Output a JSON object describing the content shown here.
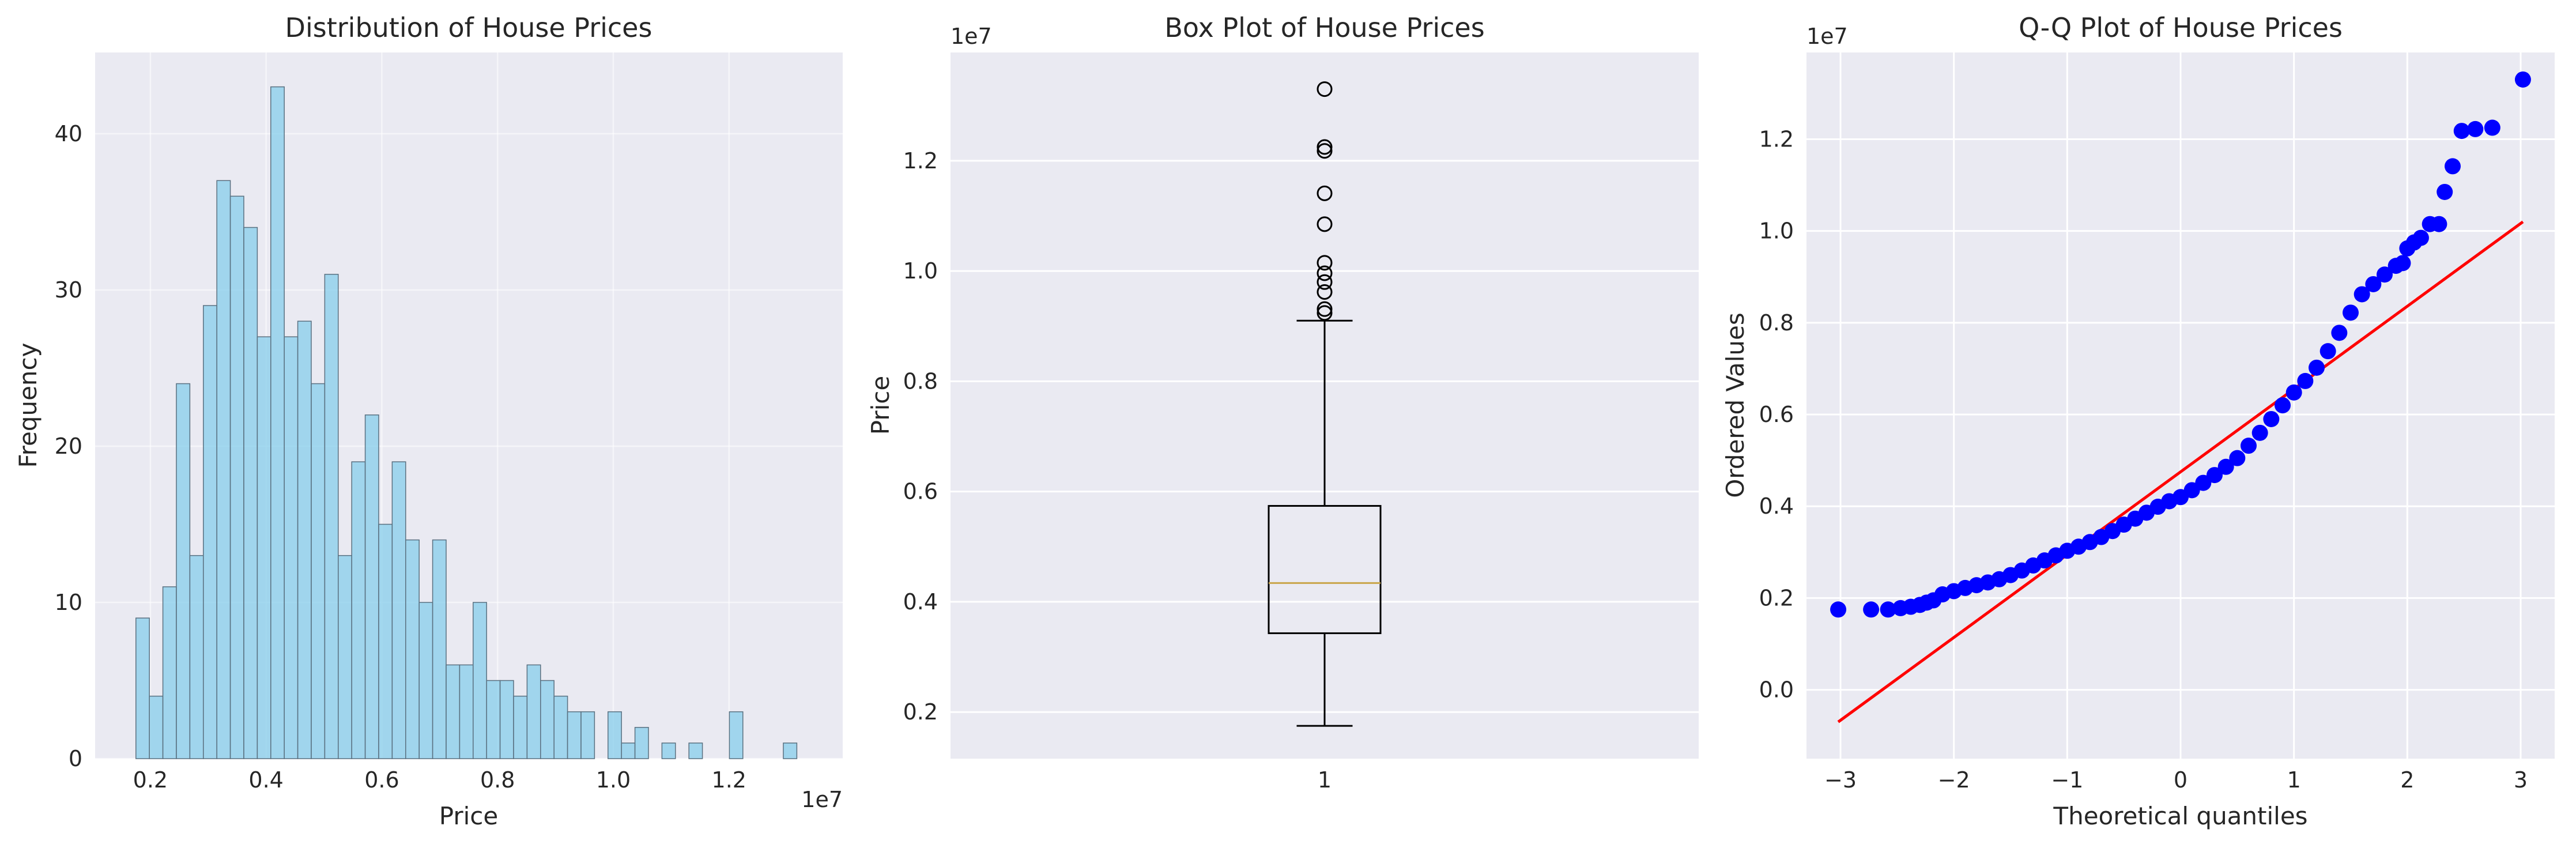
{
  "chart_data": [
    {
      "type": "bar",
      "subtype": "histogram",
      "title": "Distribution of House Prices",
      "xlabel": "Price",
      "ylabel": "Frequency",
      "x_offset_label": "1e7",
      "xlim": [
        0.1045,
        1.3965
      ],
      "ylim": [
        0,
        45.2
      ],
      "xticks": [
        0.2,
        0.4,
        0.6,
        0.8,
        1.0,
        1.2
      ],
      "xtick_labels": [
        "0.2",
        "0.4",
        "0.6",
        "0.8",
        "1.0",
        "1.2"
      ],
      "yticks": [
        0,
        10,
        20,
        30,
        40
      ],
      "ytick_labels": [
        "0",
        "10",
        "20",
        "30",
        "40"
      ],
      "bin_start": 0.175,
      "bin_width": 0.02331,
      "values": [
        9,
        4,
        11,
        24,
        13,
        29,
        37,
        36,
        34,
        27,
        43,
        27,
        28,
        24,
        31,
        13,
        19,
        22,
        15,
        19,
        14,
        10,
        14,
        6,
        6,
        10,
        5,
        5,
        4,
        6,
        5,
        4,
        3,
        3,
        0,
        3,
        1,
        2,
        0,
        1,
        0,
        1,
        0,
        0,
        3,
        0,
        0,
        0,
        1
      ],
      "color": "#87ceeb",
      "edge_color": "#5a7080",
      "grid": true
    },
    {
      "type": "box",
      "title": "Box Plot of House Prices",
      "ylabel": "Price",
      "y_offset_label": "1e7",
      "categories": [
        "1"
      ],
      "ylim": [
        0.1155,
        1.3965
      ],
      "yticks": [
        0.2,
        0.4,
        0.6,
        0.8,
        1.0,
        1.2
      ],
      "ytick_labels": [
        "0.2",
        "0.4",
        "0.6",
        "0.8",
        "1.0",
        "1.2"
      ],
      "box": {
        "whisker_low": 0.175,
        "q1": 0.343,
        "median": 0.434,
        "q3": 0.574,
        "whisker_high": 0.91
      },
      "outliers": [
        0.924,
        0.931,
        0.962,
        0.98,
        0.996,
        1.015,
        1.085,
        1.141,
        1.218,
        1.225,
        1.33
      ],
      "median_color": "#c9a54a",
      "grid": true
    },
    {
      "type": "scatter",
      "subtype": "qq",
      "title": "Q-Q Plot of House Prices",
      "xlabel": "Theoretical quantiles",
      "ylabel": "Ordered Values",
      "y_offset_label": "1e7",
      "xlim": [
        -3.3,
        3.3
      ],
      "ylim": [
        -0.15,
        1.389
      ],
      "xticks": [
        -3,
        -2,
        -1,
        0,
        1,
        2,
        3
      ],
      "xtick_labels": [
        "−3",
        "−2",
        "−1",
        "0",
        "1",
        "2",
        "3"
      ],
      "yticks": [
        0.0,
        0.2,
        0.4,
        0.6,
        0.8,
        1.0,
        1.2
      ],
      "ytick_labels": [
        "0.0",
        "0.2",
        "0.4",
        "0.6",
        "0.8",
        "1.0",
        "1.2"
      ],
      "points": [
        [
          -3.02,
          0.175
        ],
        [
          -2.73,
          0.175
        ],
        [
          -2.58,
          0.175
        ],
        [
          -2.47,
          0.178
        ],
        [
          -2.38,
          0.181
        ],
        [
          -2.3,
          0.185
        ],
        [
          -2.24,
          0.19
        ],
        [
          -2.18,
          0.195
        ],
        [
          -2.1,
          0.208
        ],
        [
          -2.0,
          0.215
        ],
        [
          -1.9,
          0.222
        ],
        [
          -1.8,
          0.228
        ],
        [
          -1.7,
          0.234
        ],
        [
          -1.6,
          0.241
        ],
        [
          -1.5,
          0.25
        ],
        [
          -1.4,
          0.26
        ],
        [
          -1.3,
          0.271
        ],
        [
          -1.2,
          0.282
        ],
        [
          -1.1,
          0.293
        ],
        [
          -1.0,
          0.303
        ],
        [
          -0.9,
          0.312
        ],
        [
          -0.8,
          0.322
        ],
        [
          -0.7,
          0.333
        ],
        [
          -0.6,
          0.346
        ],
        [
          -0.5,
          0.36
        ],
        [
          -0.4,
          0.373
        ],
        [
          -0.3,
          0.386
        ],
        [
          -0.2,
          0.399
        ],
        [
          -0.1,
          0.411
        ],
        [
          0.0,
          0.42
        ],
        [
          0.1,
          0.435
        ],
        [
          0.2,
          0.451
        ],
        [
          0.3,
          0.468
        ],
        [
          0.4,
          0.486
        ],
        [
          0.5,
          0.505
        ],
        [
          0.6,
          0.532
        ],
        [
          0.7,
          0.56
        ],
        [
          0.8,
          0.59
        ],
        [
          0.9,
          0.62
        ],
        [
          1.0,
          0.648
        ],
        [
          1.1,
          0.673
        ],
        [
          1.2,
          0.702
        ],
        [
          1.3,
          0.738
        ],
        [
          1.4,
          0.778
        ],
        [
          1.5,
          0.822
        ],
        [
          1.6,
          0.862
        ],
        [
          1.7,
          0.884
        ],
        [
          1.8,
          0.905
        ],
        [
          1.9,
          0.924
        ],
        [
          1.96,
          0.93
        ],
        [
          2.0,
          0.962
        ],
        [
          2.06,
          0.975
        ],
        [
          2.12,
          0.985
        ],
        [
          2.2,
          1.015
        ],
        [
          2.28,
          1.015
        ],
        [
          2.33,
          1.085
        ],
        [
          2.4,
          1.141
        ],
        [
          2.48,
          1.218
        ],
        [
          2.6,
          1.222
        ],
        [
          2.75,
          1.225
        ],
        [
          3.02,
          1.33
        ]
      ],
      "fit_line": {
        "x": [
          -3.02,
          3.02
        ],
        "y": [
          -0.07,
          1.02
        ]
      },
      "point_color": "#0000ff",
      "line_color": "#ff0000",
      "grid": true
    }
  ]
}
